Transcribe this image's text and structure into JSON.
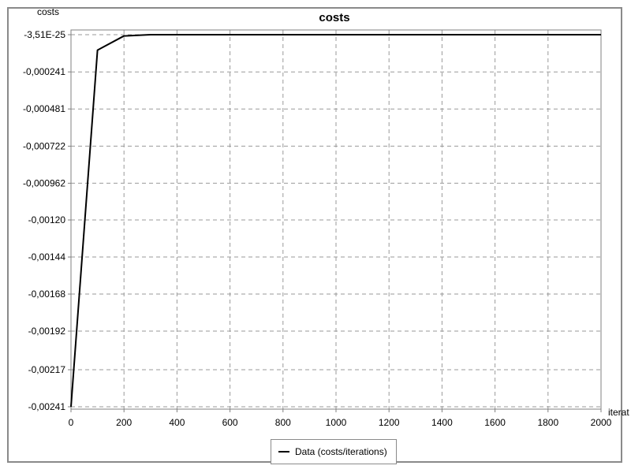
{
  "chart_data": {
    "type": "line",
    "title": "costs",
    "ylabel": "costs",
    "xlabel": "iterat",
    "xlim": [
      0,
      2000
    ],
    "ylim": [
      -0.00241,
      -3.51e-25
    ],
    "x_ticks": [
      0,
      200,
      400,
      600,
      800,
      1000,
      1200,
      1400,
      1600,
      1800,
      2000
    ],
    "y_tick_values": [
      -3.51e-25,
      -0.000241,
      -0.000481,
      -0.000722,
      -0.000962,
      -0.0012,
      -0.00144,
      -0.00168,
      -0.00192,
      -0.00217,
      -0.00241
    ],
    "y_tick_labels": [
      "-3,51E-25",
      "-0,000241",
      "-0,000481",
      "-0,000722",
      "-0,000962",
      "-0,00120",
      "-0,00144",
      "-0,00168",
      "-0,00192",
      "-0,00217",
      "-0,00241"
    ],
    "grid": true,
    "legend_position": "bottom-center",
    "series": [
      {
        "name": "Data (costs/iterations)",
        "color": "#000000",
        "x": [
          0,
          100,
          200,
          300,
          400,
          600,
          800,
          1000,
          1200,
          1400,
          1600,
          1800,
          2000
        ],
        "y": [
          -0.00241,
          -0.0001,
          -8e-06,
          0,
          0,
          0,
          0,
          0,
          0,
          0,
          0,
          0,
          0
        ]
      }
    ]
  }
}
